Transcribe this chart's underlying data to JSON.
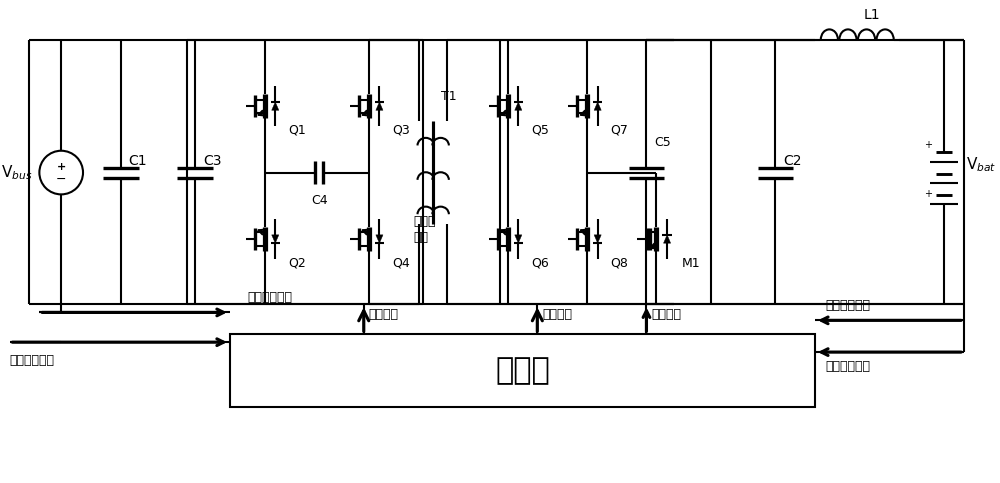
{
  "bg_color": "#ffffff",
  "lc": "#000000",
  "lw": 1.5,
  "fw": 10.0,
  "fh": 4.83,
  "labels": {
    "Vbus": "V$_{bus}$",
    "C1": "C1",
    "C2": "C2",
    "C3": "C3",
    "C4": "C4",
    "C5": "C5",
    "L1": "L1",
    "Q1": "Q1",
    "Q2": "Q2",
    "Q3": "Q3",
    "Q4": "Q4",
    "Q5": "Q5",
    "Q6": "Q6",
    "Q7": "Q7",
    "Q8": "Q8",
    "M1": "M1",
    "T1": "T1",
    "Vbat": "V$_{bat}$",
    "controller": "控制器",
    "hft1": "高频变",
    "hft2": "压器",
    "drv1": "驱动信号",
    "drv2": "驱动信号",
    "vs1": "电压采样信号",
    "cs": "电流采样信号",
    "vs2": "电压采样信号",
    "pwr": "功率方向信号",
    "sw": "投切信号"
  }
}
